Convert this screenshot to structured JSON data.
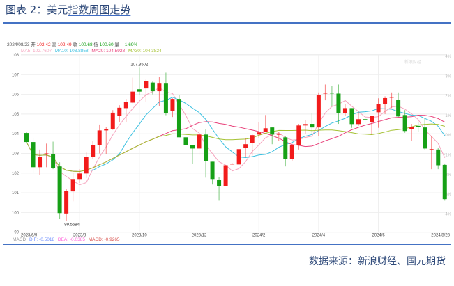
{
  "title": {
    "prefix": "图表 2：美元",
    "underlined": "指数周图走势"
  },
  "source": "数据来源：新浪财经、国元期货",
  "watermark": "新浪财经",
  "info": {
    "date": "2024/08/23",
    "open_label": "开",
    "open": "102.42",
    "high_label": "高",
    "high": "102.49",
    "close_label": "收",
    "close": "100.68",
    "low_label": "低",
    "low": "100.60",
    "vol_label": "量",
    "vol": "-",
    "change": "-1.69%"
  },
  "ma_legend": [
    {
      "label": "MA5: 102.7607",
      "color": "#f5a3bd"
    },
    {
      "label": "MA10: 103.8858",
      "color": "#3cc0e0"
    },
    {
      "label": "MA20: 104.5928",
      "color": "#e8417a"
    },
    {
      "label": "MA30: 104.3824",
      "color": "#a5c233"
    }
  ],
  "macd": {
    "label": "MACD",
    "dif": "DIF: -0.5018",
    "dea": "DEA: -0.0385",
    "macd": "MACD: -0.9265",
    "dif_color": "#6b8cff",
    "dea_color": "#ff66dd",
    "macd_color": "#d9534f"
  },
  "colors": {
    "up": "#f21b1b",
    "down": "#16a016",
    "grid": "#eeeeee"
  },
  "chart_data": {
    "type": "candlestick",
    "period": "weekly",
    "x_tick_labels": [
      "2023/6/9",
      "2023/8",
      "2023/10",
      "2023/12",
      "2024/2",
      "2024/4",
      "2024/6",
      "2024/8/23"
    ],
    "x_tick_index": [
      0,
      8,
      17,
      26,
      35,
      44,
      53,
      63
    ],
    "y_ticks": [
      99,
      100,
      101,
      102,
      103,
      104,
      105,
      106,
      107,
      108
    ],
    "y_right_ticks": [
      "4%",
      "3%",
      "2%",
      "1%",
      "0%",
      "-1%",
      "-2%",
      "-3%",
      "-4%"
    ],
    "ylim": [
      99,
      108
    ],
    "grid": true,
    "annotations": [
      {
        "text": "107.3502",
        "index": 17,
        "at": "high"
      },
      {
        "text": "99.5684",
        "index": 6,
        "at": "low"
      }
    ],
    "ma_periods": [
      5,
      10,
      20,
      30
    ],
    "ohlc": [
      [
        104.04,
        104.1,
        103.5,
        103.58
      ],
      [
        103.58,
        103.8,
        102.0,
        102.3
      ],
      [
        102.3,
        103.2,
        101.9,
        102.83
      ],
      [
        102.95,
        103.5,
        102.3,
        103.0
      ],
      [
        102.95,
        103.6,
        102.2,
        102.27
      ],
      [
        102.34,
        102.55,
        99.66,
        99.97
      ],
      [
        99.95,
        101.2,
        99.57,
        101.1
      ],
      [
        101.07,
        102.0,
        100.57,
        101.7
      ],
      [
        101.7,
        102.2,
        101.5,
        101.98
      ],
      [
        101.98,
        103.05,
        101.75,
        102.83
      ],
      [
        102.83,
        103.65,
        102.7,
        103.42
      ],
      [
        103.42,
        104.47,
        103.0,
        104.17
      ],
      [
        104.17,
        104.35,
        102.95,
        104.25
      ],
      [
        104.24,
        105.2,
        104.2,
        105.07
      ],
      [
        104.9,
        105.45,
        104.6,
        105.32
      ],
      [
        105.3,
        105.77,
        104.6,
        105.6
      ],
      [
        105.58,
        106.85,
        105.55,
        106.14
      ],
      [
        106.26,
        107.35,
        105.95,
        106.14
      ],
      [
        106.3,
        106.75,
        105.6,
        106.67
      ],
      [
        106.6,
        106.65,
        106.0,
        106.16
      ],
      [
        106.16,
        106.9,
        105.4,
        106.58
      ],
      [
        106.58,
        107.1,
        104.94,
        105.05
      ],
      [
        105.16,
        105.8,
        104.85,
        105.77
      ],
      [
        105.77,
        105.95,
        103.82,
        103.82
      ],
      [
        103.82,
        103.9,
        103.43,
        103.43
      ],
      [
        103.43,
        103.43,
        102.48,
        103.25
      ],
      [
        103.25,
        104.24,
        102.9,
        103.96
      ],
      [
        103.96,
        104.24,
        101.77,
        102.62
      ],
      [
        102.58,
        102.58,
        101.42,
        101.7
      ],
      [
        101.67,
        101.8,
        100.6,
        101.35
      ],
      [
        101.35,
        102.4,
        101.35,
        102.4
      ],
      [
        102.44,
        102.5,
        102.44,
        102.48
      ],
      [
        102.44,
        103.22,
        102.44,
        103.22
      ],
      [
        103.3,
        103.78,
        102.8,
        103.47
      ],
      [
        103.54,
        104.0,
        102.9,
        103.93
      ],
      [
        103.96,
        104.6,
        103.8,
        104.07
      ],
      [
        104.1,
        104.95,
        104.1,
        104.28
      ],
      [
        104.32,
        104.32,
        103.47,
        103.96
      ],
      [
        103.95,
        104.07,
        103.64,
        104.0
      ],
      [
        103.82,
        103.9,
        102.34,
        102.72
      ],
      [
        102.72,
        103.5,
        102.6,
        103.43
      ],
      [
        103.43,
        104.5,
        103.2,
        104.42
      ],
      [
        104.42,
        104.7,
        104.0,
        104.49
      ],
      [
        104.5,
        105.05,
        104.0,
        104.32
      ],
      [
        104.32,
        106.1,
        103.9,
        105.97
      ],
      [
        106.04,
        106.5,
        105.7,
        106.08
      ],
      [
        106.08,
        106.44,
        105.4,
        106.05
      ],
      [
        106.04,
        106.5,
        104.5,
        105.05
      ],
      [
        105.05,
        105.5,
        104.9,
        105.3
      ],
      [
        105.3,
        105.3,
        104.3,
        104.49
      ],
      [
        104.49,
        105.1,
        104.4,
        104.74
      ],
      [
        104.74,
        105.12,
        104.4,
        104.68
      ],
      [
        104.6,
        104.92,
        103.96,
        104.92
      ],
      [
        105.09,
        105.8,
        104.3,
        105.52
      ],
      [
        105.52,
        105.9,
        105.0,
        105.81
      ],
      [
        105.83,
        106.1,
        105.3,
        105.88
      ],
      [
        105.73,
        106.1,
        104.85,
        104.88
      ],
      [
        104.95,
        105.2,
        104.05,
        104.14
      ],
      [
        104.22,
        104.5,
        103.64,
        104.36
      ],
      [
        104.4,
        104.6,
        104.1,
        104.35
      ],
      [
        104.32,
        104.77,
        103.2,
        103.25
      ],
      [
        103.2,
        103.9,
        102.2,
        103.22
      ],
      [
        103.2,
        103.3,
        102.2,
        102.4
      ],
      [
        102.42,
        102.49,
        100.6,
        100.68
      ]
    ]
  }
}
